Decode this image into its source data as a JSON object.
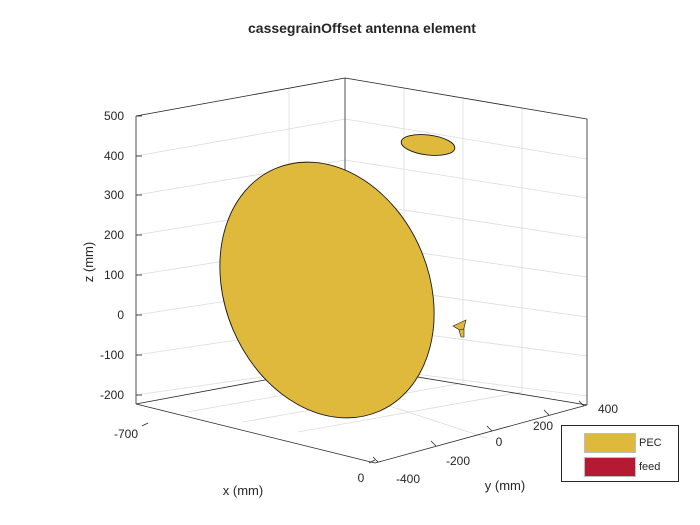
{
  "figure": {
    "title": "cassegrainOffset antenna element",
    "x_axis": {
      "label": "x (mm)",
      "ticks": [
        "-700",
        "0"
      ]
    },
    "y_axis": {
      "label": "y (mm)",
      "ticks": [
        "-400",
        "-200",
        "0",
        "200",
        "400"
      ]
    },
    "z_axis": {
      "label": "z (mm)",
      "ticks": [
        "500",
        "400",
        "300",
        "200",
        "100",
        "0",
        "-100",
        "-200"
      ]
    },
    "legend": [
      {
        "label": "PEC",
        "color": "#DFB93C"
      },
      {
        "label": "feed",
        "color": "#B81932"
      }
    ]
  },
  "parts": [
    {
      "name": "main-reflector",
      "material": "PEC"
    },
    {
      "name": "subreflector",
      "material": "PEC"
    },
    {
      "name": "feed-horn",
      "material": "PEC"
    }
  ],
  "colors": {
    "pec": "#DFB93C",
    "feed": "#B81932",
    "axes": "#262626",
    "grid": "#DCDCDC"
  }
}
